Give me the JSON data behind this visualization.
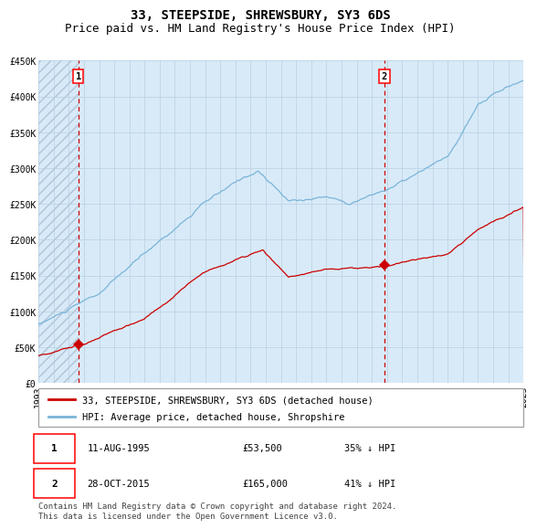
{
  "title": "33, STEEPSIDE, SHREWSBURY, SY3 6DS",
  "subtitle": "Price paid vs. HM Land Registry's House Price Index (HPI)",
  "x_start_year": 1993,
  "x_end_year": 2025,
  "ylim": [
    0,
    450000
  ],
  "yticks": [
    0,
    50000,
    100000,
    150000,
    200000,
    250000,
    300000,
    350000,
    400000,
    450000
  ],
  "ytick_labels": [
    "£0",
    "£50K",
    "£100K",
    "£150K",
    "£200K",
    "£250K",
    "£300K",
    "£350K",
    "£400K",
    "£450K"
  ],
  "hpi_color": "#7ab4d8",
  "price_color": "#cc0000",
  "marker_color": "#cc0000",
  "vline_color": "#cc0000",
  "grid_color": "#b8cfe0",
  "bg_color": "#d8eaf8",
  "hatch_color": "#b0c4d8",
  "sale1": {
    "date_num": 1995.62,
    "price": 53500,
    "label": "1",
    "date_str": "11-AUG-1995",
    "pct": "35%"
  },
  "sale2": {
    "date_num": 2015.83,
    "price": 165000,
    "label": "2",
    "date_str": "28-OCT-2015",
    "pct": "41%"
  },
  "legend_house_label": "33, STEEPSIDE, SHREWSBURY, SY3 6DS (detached house)",
  "legend_hpi_label": "HPI: Average price, detached house, Shropshire",
  "footer": "Contains HM Land Registry data © Crown copyright and database right 2024.\nThis data is licensed under the Open Government Licence v3.0.",
  "title_fontsize": 10,
  "subtitle_fontsize": 9,
  "tick_fontsize": 7,
  "legend_fontsize": 7.5,
  "footer_fontsize": 6.5
}
